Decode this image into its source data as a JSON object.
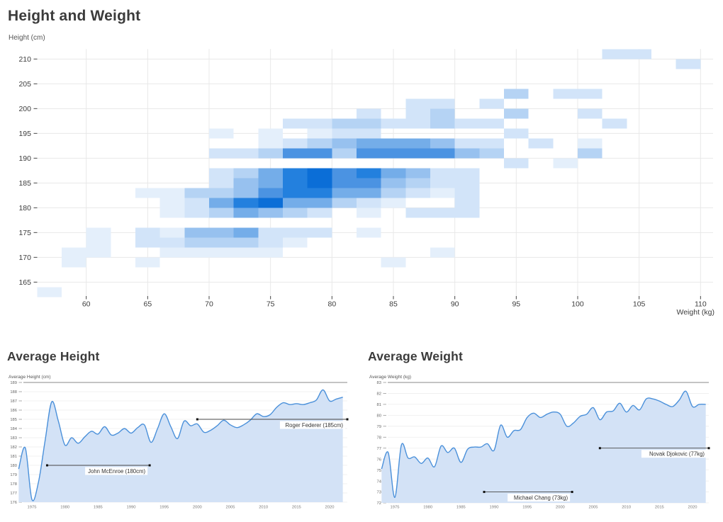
{
  "background": "#ffffff",
  "chart_data": [
    {
      "type": "heatmap",
      "title": "Height and Weight",
      "xlabel": "Weight (kg)",
      "ylabel": "Height (cm)",
      "x_ticks": [
        60,
        65,
        70,
        75,
        80,
        85,
        90,
        95,
        100,
        105,
        110
      ],
      "y_ticks": [
        165,
        170,
        175,
        180,
        185,
        190,
        195,
        200,
        205,
        210
      ],
      "x_bin_kg": 2,
      "y_bin_cm": 2,
      "x_range": [
        56,
        112
      ],
      "y_range": [
        162,
        212
      ],
      "palette": [
        "#ffffff",
        "#e4effb",
        "#d2e4f9",
        "#b5d3f4",
        "#97c1ef",
        "#74ade9",
        "#4b93e2",
        "#2380de",
        "#0b6ed7"
      ],
      "cells": [
        [
          102,
          210,
          2
        ],
        [
          104,
          210,
          2
        ],
        [
          108,
          208,
          2
        ],
        [
          94,
          202,
          3
        ],
        [
          98,
          202,
          2
        ],
        [
          100,
          202,
          2
        ],
        [
          86,
          200,
          2
        ],
        [
          88,
          200,
          2
        ],
        [
          92,
          200,
          2
        ],
        [
          82,
          198,
          2
        ],
        [
          86,
          198,
          2
        ],
        [
          88,
          198,
          3
        ],
        [
          94,
          198,
          3
        ],
        [
          100,
          198,
          2
        ],
        [
          76,
          196,
          2
        ],
        [
          78,
          196,
          2
        ],
        [
          80,
          196,
          3
        ],
        [
          82,
          196,
          3
        ],
        [
          84,
          196,
          2
        ],
        [
          86,
          196,
          2
        ],
        [
          88,
          196,
          3
        ],
        [
          90,
          196,
          2
        ],
        [
          92,
          196,
          2
        ],
        [
          102,
          196,
          2
        ],
        [
          70,
          194,
          1
        ],
        [
          74,
          194,
          1
        ],
        [
          78,
          194,
          1
        ],
        [
          80,
          194,
          2
        ],
        [
          82,
          194,
          2
        ],
        [
          94,
          194,
          2
        ],
        [
          74,
          192,
          1
        ],
        [
          76,
          192,
          2
        ],
        [
          78,
          192,
          3
        ],
        [
          80,
          192,
          4
        ],
        [
          82,
          192,
          5
        ],
        [
          84,
          192,
          5
        ],
        [
          86,
          192,
          5
        ],
        [
          88,
          192,
          4
        ],
        [
          90,
          192,
          2
        ],
        [
          92,
          192,
          2
        ],
        [
          96,
          192,
          2
        ],
        [
          100,
          192,
          1
        ],
        [
          70,
          190,
          2
        ],
        [
          72,
          190,
          2
        ],
        [
          74,
          190,
          3
        ],
        [
          76,
          190,
          6
        ],
        [
          78,
          190,
          6
        ],
        [
          80,
          190,
          3
        ],
        [
          82,
          190,
          6
        ],
        [
          84,
          190,
          6
        ],
        [
          86,
          190,
          6
        ],
        [
          88,
          190,
          6
        ],
        [
          90,
          190,
          4
        ],
        [
          92,
          190,
          3
        ],
        [
          100,
          190,
          3
        ],
        [
          94,
          188,
          2
        ],
        [
          98,
          188,
          1
        ],
        [
          70,
          186,
          2
        ],
        [
          72,
          186,
          3
        ],
        [
          74,
          186,
          5
        ],
        [
          76,
          186,
          7
        ],
        [
          78,
          186,
          8
        ],
        [
          80,
          186,
          6
        ],
        [
          82,
          186,
          7
        ],
        [
          84,
          186,
          5
        ],
        [
          86,
          186,
          4
        ],
        [
          88,
          186,
          2
        ],
        [
          90,
          186,
          2
        ],
        [
          70,
          184,
          2
        ],
        [
          72,
          184,
          4
        ],
        [
          74,
          184,
          5
        ],
        [
          76,
          184,
          7
        ],
        [
          78,
          184,
          8
        ],
        [
          80,
          184,
          6
        ],
        [
          82,
          184,
          6
        ],
        [
          84,
          184,
          4
        ],
        [
          86,
          184,
          3
        ],
        [
          88,
          184,
          2
        ],
        [
          90,
          184,
          2
        ],
        [
          64,
          182,
          1
        ],
        [
          66,
          182,
          1
        ],
        [
          68,
          182,
          3
        ],
        [
          70,
          182,
          3
        ],
        [
          72,
          182,
          4
        ],
        [
          74,
          182,
          6
        ],
        [
          76,
          182,
          7
        ],
        [
          78,
          182,
          7
        ],
        [
          80,
          182,
          5
        ],
        [
          82,
          182,
          5
        ],
        [
          84,
          182,
          3
        ],
        [
          86,
          182,
          2
        ],
        [
          88,
          182,
          1
        ],
        [
          90,
          182,
          2
        ],
        [
          66,
          180,
          1
        ],
        [
          68,
          180,
          2
        ],
        [
          70,
          180,
          5
        ],
        [
          72,
          180,
          7
        ],
        [
          74,
          180,
          8
        ],
        [
          76,
          180,
          5
        ],
        [
          78,
          180,
          5
        ],
        [
          80,
          180,
          3
        ],
        [
          82,
          180,
          2
        ],
        [
          84,
          180,
          1
        ],
        [
          90,
          180,
          2
        ],
        [
          66,
          178,
          1
        ],
        [
          68,
          178,
          2
        ],
        [
          70,
          178,
          3
        ],
        [
          72,
          178,
          5
        ],
        [
          74,
          178,
          4
        ],
        [
          76,
          178,
          3
        ],
        [
          78,
          178,
          2
        ],
        [
          82,
          178,
          1
        ],
        [
          86,
          178,
          2
        ],
        [
          88,
          178,
          2
        ],
        [
          90,
          178,
          2
        ],
        [
          60,
          174,
          1
        ],
        [
          64,
          174,
          2
        ],
        [
          66,
          174,
          1
        ],
        [
          68,
          174,
          4
        ],
        [
          70,
          174,
          4
        ],
        [
          72,
          174,
          5
        ],
        [
          74,
          174,
          2
        ],
        [
          76,
          174,
          2
        ],
        [
          78,
          174,
          2
        ],
        [
          82,
          174,
          1
        ],
        [
          60,
          172,
          1
        ],
        [
          64,
          172,
          2
        ],
        [
          66,
          172,
          2
        ],
        [
          68,
          172,
          3
        ],
        [
          70,
          172,
          3
        ],
        [
          72,
          172,
          3
        ],
        [
          74,
          172,
          2
        ],
        [
          76,
          172,
          1
        ],
        [
          58,
          170,
          1
        ],
        [
          60,
          170,
          1
        ],
        [
          66,
          170,
          1
        ],
        [
          68,
          170,
          1
        ],
        [
          70,
          170,
          1
        ],
        [
          72,
          170,
          1
        ],
        [
          74,
          170,
          1
        ],
        [
          88,
          170,
          1
        ],
        [
          58,
          168,
          1
        ],
        [
          64,
          168,
          1
        ],
        [
          84,
          168,
          1
        ],
        [
          56,
          162,
          1
        ]
      ]
    },
    {
      "type": "area",
      "title": "Average Height",
      "axis_label": "Average Height (cm)",
      "x_ticks": [
        1975,
        1980,
        1985,
        1990,
        1995,
        2000,
        2005,
        2010,
        2015,
        2020
      ],
      "y_ticks": [
        176,
        177,
        178,
        179,
        180,
        181,
        182,
        183,
        184,
        185,
        186,
        187,
        188,
        189
      ],
      "ylim": [
        176,
        189
      ],
      "years": [
        1973,
        1974,
        1975,
        1976,
        1977,
        1978,
        1979,
        1980,
        1981,
        1982,
        1983,
        1984,
        1985,
        1986,
        1987,
        1988,
        1989,
        1990,
        1991,
        1992,
        1993,
        1994,
        1995,
        1996,
        1997,
        1998,
        1999,
        2000,
        2001,
        2002,
        2003,
        2004,
        2005,
        2006,
        2007,
        2008,
        2009,
        2010,
        2011,
        2012,
        2013,
        2014,
        2015,
        2016,
        2017,
        2018,
        2019,
        2020,
        2021,
        2022
      ],
      "values": [
        179.6,
        181.9,
        176.3,
        178.2,
        182.7,
        186.9,
        184.8,
        182.2,
        183.0,
        182.4,
        183.1,
        183.7,
        183.4,
        184.2,
        183.3,
        183.5,
        184.0,
        183.5,
        184.1,
        184.4,
        182.5,
        184.0,
        185.6,
        184.2,
        182.9,
        184.8,
        184.3,
        184.5,
        183.6,
        183.8,
        184.3,
        184.9,
        184.4,
        184.1,
        184.4,
        184.9,
        185.6,
        185.3,
        185.5,
        186.3,
        186.8,
        186.6,
        186.7,
        186.6,
        186.8,
        187.1,
        188.2,
        187.0,
        187.2,
        187.4
      ],
      "line_color": "#4a90da",
      "fill_color": "#d3e2f6",
      "annotations": [
        {
          "label": "John McEnroe (180cm)",
          "value": 180,
          "start_year": 1977.3,
          "end_year": 1992.8
        },
        {
          "label": "Roger Federer (185cm)",
          "value": 185,
          "start_year": 2000,
          "end_year": 2022.7
        }
      ]
    },
    {
      "type": "area",
      "title": "Average Weight",
      "axis_label": "Average Weight (kg)",
      "x_ticks": [
        1975,
        1980,
        1985,
        1990,
        1995,
        2000,
        2005,
        2010,
        2015,
        2020
      ],
      "y_ticks": [
        72,
        73,
        74,
        75,
        76,
        77,
        78,
        79,
        80,
        81,
        82,
        83
      ],
      "ylim": [
        72,
        83
      ],
      "years": [
        1973,
        1974,
        1975,
        1976,
        1977,
        1978,
        1979,
        1980,
        1981,
        1982,
        1983,
        1984,
        1985,
        1986,
        1987,
        1988,
        1989,
        1990,
        1991,
        1992,
        1993,
        1994,
        1995,
        1996,
        1997,
        1998,
        1999,
        2000,
        2001,
        2002,
        2003,
        2004,
        2005,
        2006,
        2007,
        2008,
        2009,
        2010,
        2011,
        2012,
        2013,
        2014,
        2015,
        2016,
        2017,
        2018,
        2019,
        2020,
        2021,
        2022
      ],
      "values": [
        75.1,
        76.6,
        72.5,
        77.3,
        76.1,
        76.2,
        75.6,
        76.1,
        75.3,
        77.2,
        76.6,
        77.0,
        75.7,
        76.9,
        77.1,
        77.1,
        77.4,
        76.8,
        79.1,
        78.0,
        78.6,
        78.7,
        79.8,
        80.2,
        79.8,
        80.1,
        80.3,
        80.1,
        79.0,
        79.3,
        79.9,
        80.1,
        80.7,
        79.6,
        80.3,
        80.4,
        81.1,
        80.3,
        80.9,
        80.5,
        81.5,
        81.5,
        81.3,
        81.0,
        80.8,
        81.4,
        82.2,
        80.8,
        81.0,
        81.0
      ],
      "line_color": "#4a90da",
      "fill_color": "#d3e2f6",
      "annotations": [
        {
          "label": "Michael Chang (73kg)",
          "value": 73,
          "start_year": 1988.5,
          "end_year": 2001.8
        },
        {
          "label": "Novak Djokovic (77kg)",
          "value": 77,
          "start_year": 2006,
          "end_year": 2022.5
        }
      ]
    }
  ]
}
